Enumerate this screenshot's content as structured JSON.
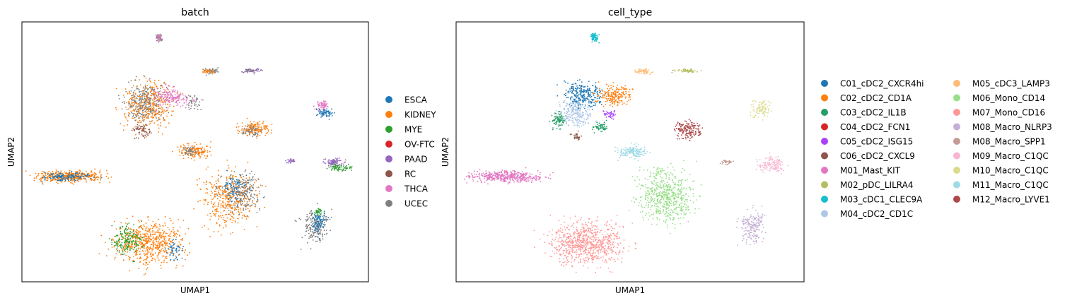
{
  "chart_data": [
    {
      "type": "scatter",
      "title": "batch",
      "xlabel": "UMAP1",
      "ylabel": "UMAP2",
      "grid": false,
      "legend_placement": "right",
      "series": [
        {
          "name": "ESCA",
          "color": "#1f77b4"
        },
        {
          "name": "KIDNEY",
          "color": "#ff7f0e"
        },
        {
          "name": "MYE",
          "color": "#2ca02c"
        },
        {
          "name": "OV-FTC",
          "color": "#d62728"
        },
        {
          "name": "PAAD",
          "color": "#9467bd"
        },
        {
          "name": "RC",
          "color": "#8c564b"
        },
        {
          "name": "THCA",
          "color": "#e377c2"
        },
        {
          "name": "UCEC",
          "color": "#7f7f7f"
        }
      ]
    },
    {
      "type": "scatter",
      "title": "cell_type",
      "xlabel": "UMAP1",
      "ylabel": "UMAP2",
      "grid": false,
      "legend_placement": "right, two columns",
      "series": [
        {
          "name": "C01_cDC2_CXCR4hi",
          "color": "#1f77b4"
        },
        {
          "name": "C02_cDC2_CD1A",
          "color": "#ff7f0e"
        },
        {
          "name": "C03_cDC2_IL1B",
          "color": "#279e68"
        },
        {
          "name": "C04_cDC2_FCN1",
          "color": "#d62728"
        },
        {
          "name": "C05_cDC2_ISG15",
          "color": "#aa40fc"
        },
        {
          "name": "C06_cDC2_CXCL9",
          "color": "#8c564b"
        },
        {
          "name": "M01_Mast_KIT",
          "color": "#e377c2"
        },
        {
          "name": "M02_pDC_LILRA4",
          "color": "#b5bd61"
        },
        {
          "name": "M03_cDC1_CLEC9A",
          "color": "#17becf"
        },
        {
          "name": "M04_cDC2_CD1C",
          "color": "#aec7e8"
        },
        {
          "name": "M05_cDC3_LAMP3",
          "color": "#ffbb78"
        },
        {
          "name": "M06_Mono_CD14",
          "color": "#98df8a"
        },
        {
          "name": "M07_Mono_CD16",
          "color": "#ff9896"
        },
        {
          "name": "M08_Macro_NLRP3",
          "color": "#c5b0d5"
        },
        {
          "name": "M08_Macro_SPP1",
          "color": "#c49c94"
        },
        {
          "name": "M09_Macro_C1QC",
          "color": "#f7b6d2"
        },
        {
          "name": "M10_Macro_C1QC",
          "color": "#dbdb8d"
        },
        {
          "name": "M11_Macro_C1QC",
          "color": "#9edae5"
        },
        {
          "name": "M12_Macro_LYVE1",
          "color": "#ad494a"
        }
      ]
    }
  ]
}
